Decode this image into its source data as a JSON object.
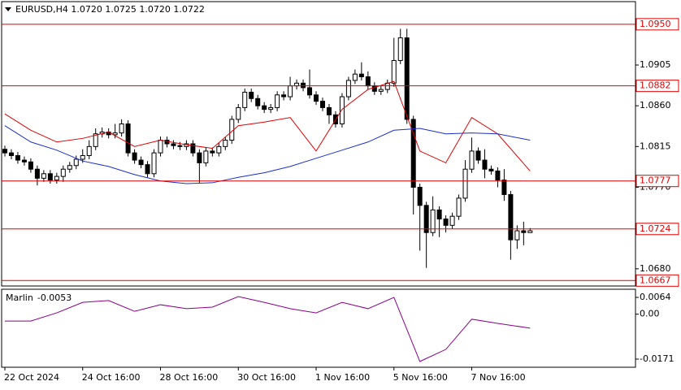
{
  "chart_data": [
    {
      "type": "candlestick",
      "title": "EURUSD,H4  1.0720 1.0725 1.0720 1.0722",
      "xlim": [
        -0.5,
        97.25
      ],
      "ylim": [
        1.0661,
        1.0975
      ],
      "xticks": [
        {
          "value": 0,
          "label": "22 Oct 2024"
        },
        {
          "value": 12,
          "label": "24 Oct 16:00"
        },
        {
          "value": 24,
          "label": "28 Oct 16:00"
        },
        {
          "value": 36,
          "label": "30 Oct 16:00"
        },
        {
          "value": 48,
          "label": "1 Nov 16:00"
        },
        {
          "value": 60,
          "label": "5 Nov 16:00"
        },
        {
          "value": 72,
          "label": "7 Nov 16:00"
        }
      ],
      "yticks": [
        1.0905,
        {
          "value": 1.086,
          "label": "1.0860"
        },
        1.0815,
        {
          "value": 1.077,
          "label": "1.0770"
        },
        {
          "value": 1.068,
          "label": "1.0680"
        }
      ],
      "levels": [
        {
          "value": 1.095,
          "label": "1.0950"
        },
        1.0882,
        1.0777,
        1.0724,
        1.0667
      ],
      "level_color": "#e00000",
      "up_color": "#ffffff",
      "down_color": "#000000",
      "open": [
        1.0812,
        1.0808,
        1.0805,
        1.08,
        1.0798,
        1.079,
        1.078,
        1.0785,
        1.0778,
        1.0782,
        1.079,
        1.0794,
        1.0801,
        1.0805,
        1.0815,
        1.0829,
        1.0831,
        1.0828,
        1.083,
        1.084,
        1.0808,
        1.08,
        1.0795,
        1.0785,
        1.0808,
        1.0822,
        1.0818,
        1.0816,
        1.0815,
        1.0818,
        1.0808,
        1.0797,
        1.081,
        1.0808,
        1.0815,
        1.0822,
        1.0845,
        1.0858,
        1.0875,
        1.0868,
        1.086,
        1.0856,
        1.0858,
        1.0872,
        1.087,
        1.0882,
        1.0885,
        1.088,
        1.0872,
        1.0865,
        1.0858,
        1.085,
        1.084,
        1.087,
        1.0888,
        1.0895,
        1.0892,
        1.0882,
        1.0876,
        1.0878,
        1.0885,
        1.091,
        1.0935,
        1.0845,
        1.077,
        1.075,
        1.072,
        1.0745,
        1.0735,
        1.0728,
        1.0738,
        1.0758,
        1.079,
        1.081,
        1.08,
        1.079,
        1.0788,
        1.0778,
        1.0762,
        1.0712,
        1.0722,
        1.072
      ],
      "high": [
        1.0816,
        1.0812,
        1.0809,
        1.0804,
        1.0802,
        1.0794,
        1.0789,
        1.0789,
        1.0786,
        1.0794,
        1.0798,
        1.0805,
        1.0812,
        1.0822,
        1.0835,
        1.0836,
        1.0835,
        1.084,
        1.0845,
        1.0844,
        1.0812,
        1.0804,
        1.0799,
        1.0812,
        1.0826,
        1.0826,
        1.0822,
        1.082,
        1.0822,
        1.0822,
        1.0812,
        1.0814,
        1.0814,
        1.0819,
        1.0826,
        1.0849,
        1.0862,
        1.0879,
        1.0879,
        1.0872,
        1.0864,
        1.0862,
        1.0876,
        1.0876,
        1.0892,
        1.0889,
        1.0889,
        1.09,
        1.0876,
        1.0869,
        1.0862,
        1.0854,
        1.0874,
        1.0892,
        1.09,
        1.0908,
        1.0898,
        1.0886,
        1.0882,
        1.0889,
        1.0935,
        1.0945,
        1.0945,
        1.0849,
        1.0774,
        1.0754,
        1.076,
        1.0749,
        1.0739,
        1.0742,
        1.0762,
        1.08,
        1.0825,
        1.0814,
        1.0812,
        1.0794,
        1.0792,
        1.079,
        1.0766,
        1.0728,
        1.0732,
        1.0725
      ],
      "low": [
        1.0804,
        1.0801,
        1.0796,
        1.0794,
        1.0786,
        1.0772,
        1.0776,
        1.0774,
        1.0774,
        1.0776,
        1.0786,
        1.079,
        1.0797,
        1.0801,
        1.0811,
        1.0825,
        1.0824,
        1.0824,
        1.0826,
        1.0804,
        1.0796,
        1.0791,
        1.0781,
        1.0781,
        1.0804,
        1.0814,
        1.0812,
        1.0811,
        1.0811,
        1.0804,
        1.0775,
        1.0793,
        1.0804,
        1.0804,
        1.0811,
        1.0818,
        1.0841,
        1.0854,
        1.0864,
        1.0856,
        1.0852,
        1.0852,
        1.0854,
        1.0866,
        1.0866,
        1.0878,
        1.0876,
        1.0868,
        1.0861,
        1.0854,
        1.084,
        1.0836,
        1.0836,
        1.0866,
        1.0884,
        1.0888,
        1.0878,
        1.0872,
        1.0872,
        1.0874,
        1.0881,
        1.0906,
        1.084,
        1.074,
        1.07,
        1.0681,
        1.0716,
        1.0715,
        1.072,
        1.0724,
        1.0734,
        1.0754,
        1.0786,
        1.0796,
        1.078,
        1.0784,
        1.077,
        1.0755,
        1.069,
        1.0702,
        1.0706,
        1.072
      ],
      "close": [
        1.0808,
        1.0805,
        1.08,
        1.0798,
        1.079,
        1.078,
        1.0785,
        1.0778,
        1.0782,
        1.079,
        1.0794,
        1.0801,
        1.0805,
        1.0815,
        1.0829,
        1.0831,
        1.0828,
        1.083,
        1.084,
        1.0808,
        1.08,
        1.0795,
        1.0785,
        1.0808,
        1.0822,
        1.0818,
        1.0816,
        1.0815,
        1.0818,
        1.0808,
        1.0797,
        1.081,
        1.0808,
        1.0815,
        1.0822,
        1.0845,
        1.0858,
        1.0875,
        1.0868,
        1.086,
        1.0856,
        1.0858,
        1.0872,
        1.087,
        1.0882,
        1.0885,
        1.088,
        1.0872,
        1.0865,
        1.0858,
        1.085,
        1.084,
        1.087,
        1.0888,
        1.0895,
        1.0892,
        1.0882,
        1.0876,
        1.0878,
        1.0885,
        1.091,
        1.0935,
        1.0845,
        1.077,
        1.075,
        1.072,
        1.0745,
        1.0735,
        1.0728,
        1.0738,
        1.0758,
        1.079,
        1.081,
        1.08,
        1.079,
        1.0788,
        1.0778,
        1.0762,
        1.0712,
        1.0722,
        1.072,
        1.0722
      ],
      "line_x": [
        0,
        4,
        8,
        12,
        16,
        20,
        24,
        28,
        32,
        36,
        40,
        44,
        48,
        52,
        56,
        60,
        64,
        68,
        72,
        76,
        81
      ],
      "lines": [
        {
          "color": "#e00000",
          "values": [
            1.0851,
            1.0833,
            1.082,
            1.0824,
            1.0831,
            1.0815,
            1.0822,
            1.0817,
            1.0813,
            1.0838,
            1.0842,
            1.0847,
            1.081,
            1.0856,
            1.0878,
            1.0887,
            1.081,
            1.0797,
            1.0847,
            1.0829,
            1.0788
          ]
        },
        {
          "color": "#1a2fd0",
          "values": [
            1.0838,
            1.082,
            1.0811,
            1.0799,
            1.0793,
            1.0784,
            1.0777,
            1.0774,
            1.0775,
            1.0781,
            1.0786,
            1.0793,
            1.0802,
            1.0811,
            1.082,
            1.0833,
            1.0835,
            1.0829,
            1.083,
            1.0829,
            1.0822
          ]
        }
      ]
    },
    {
      "type": "line",
      "ylim": [
        -0.0202,
        0.0095
      ],
      "yticks": [
        0.0064,
        {
          "value": 0,
          "label": "0.00"
        },
        -0.0171
      ],
      "x": [
        0,
        4,
        8,
        12,
        16,
        20,
        24,
        28,
        32,
        36,
        40,
        44,
        48,
        52,
        56,
        60,
        64,
        68,
        72,
        76,
        81
      ],
      "series": [
        {
          "name": "Marlin",
          "color": "#8b008b",
          "values": [
            -0.0026,
            -0.0026,
            0.0005,
            0.0045,
            0.0052,
            0.0011,
            0.0036,
            0.0021,
            0.0027,
            0.0067,
            0.0045,
            0.0021,
            0.0005,
            0.0045,
            0.0021,
            0.0064,
            -0.018,
            -0.0134,
            -0.0019,
            -0.0035,
            -0.0053
          ]
        }
      ]
    }
  ]
}
